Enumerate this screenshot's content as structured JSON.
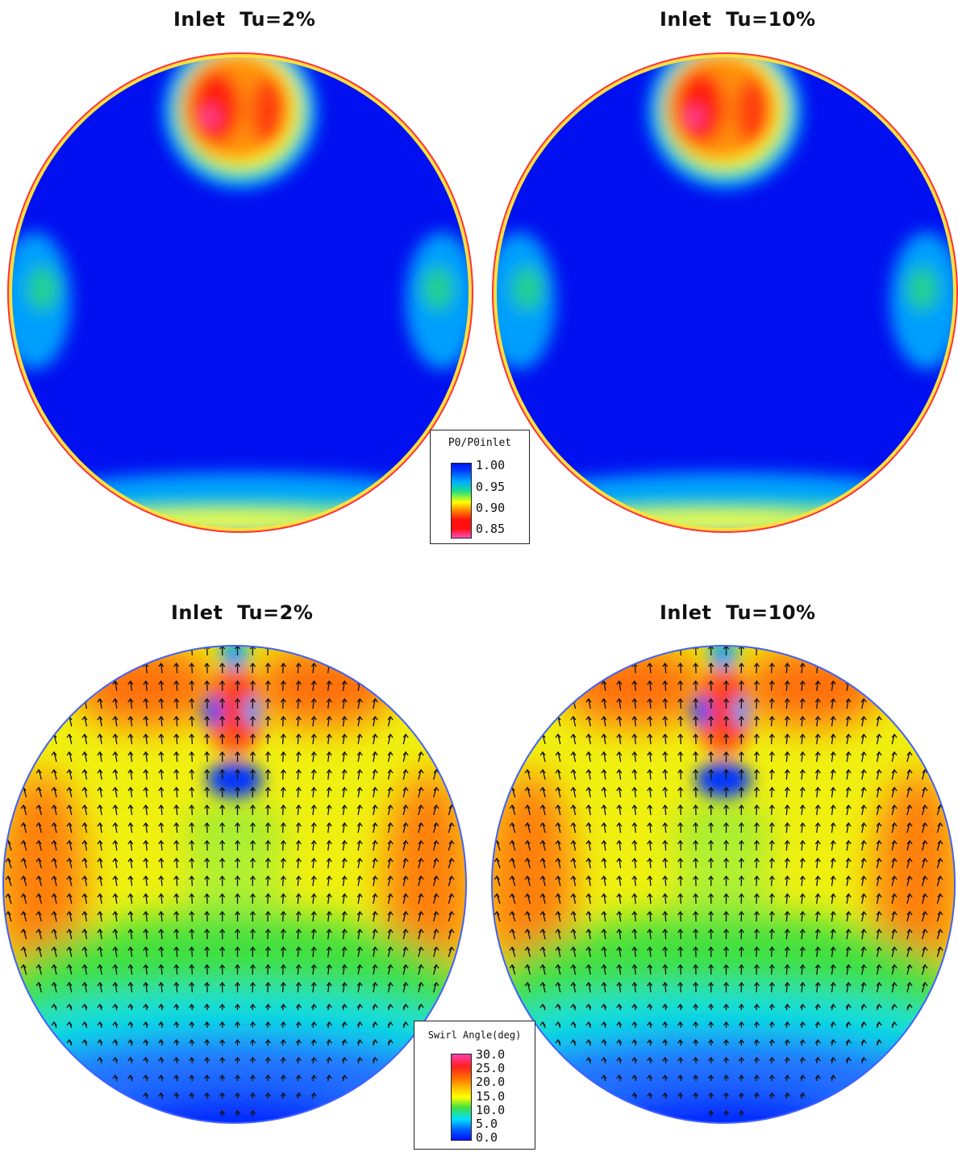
{
  "top_row": {
    "left_title": "Inlet  Tu=2%",
    "right_title": "Inlet  Tu=10%",
    "legend": {
      "title": "P0/P0inlet",
      "ticks": [
        "1.00",
        "0.95",
        "0.90",
        "0.85"
      ],
      "colors": [
        "#0010ff",
        "#00b0ff",
        "#10e060",
        "#ffff00",
        "#ff8000",
        "#ff1010",
        "#ff50c0"
      ]
    }
  },
  "bottom_row": {
    "left_title": "Inlet  Tu=2%",
    "right_title": "Inlet  Tu=10%",
    "legend": {
      "title": "Swirl Angle(deg)",
      "ticks": [
        "30.0",
        "25.0",
        "20.0",
        "15.0",
        "10.0",
        "5.0",
        "0.0"
      ],
      "colors": [
        "#ff40b0",
        "#ff2020",
        "#ff8000",
        "#ffff00",
        "#40e040",
        "#00e0ff",
        "#0010ff"
      ]
    }
  },
  "colors": {
    "field_blue": "#0010f0",
    "rim": "#ff4040",
    "vector": "#111111"
  }
}
